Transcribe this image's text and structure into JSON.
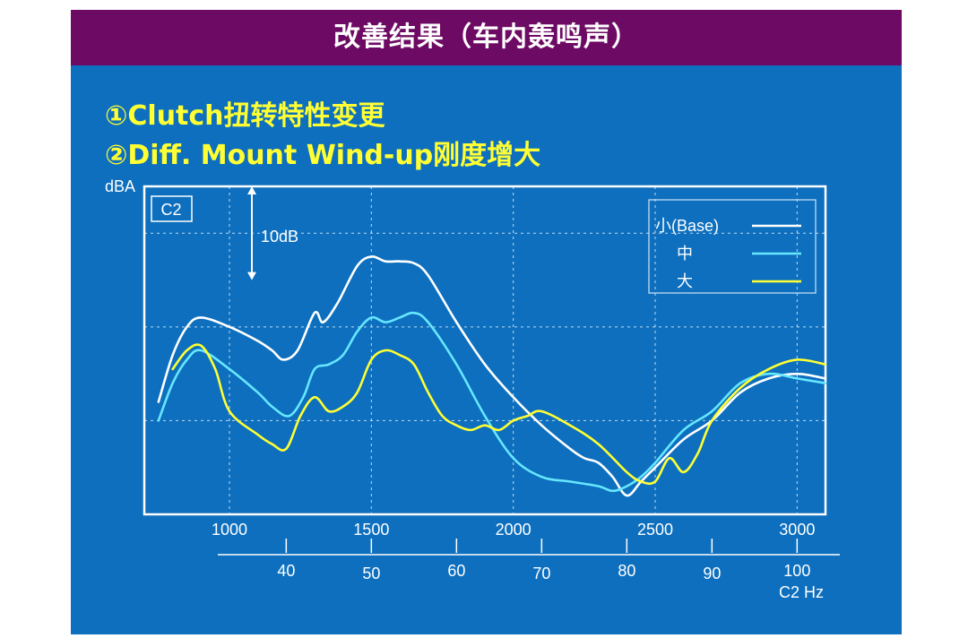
{
  "slide": {
    "title": "改善结果（车内轰鸣声）",
    "bullets": [
      "①Clutch扭转特性变更",
      "②Diff. Mount Wind-up刚度增大"
    ]
  },
  "colors": {
    "header_bg": "#6d0a64",
    "slide_bg": "#0d6fbe",
    "bullet_text": "#ffff33",
    "series_base": "#ffffff",
    "series_mid": "#66e6ff",
    "series_large": "#ffff33"
  },
  "chart_data": {
    "type": "line",
    "panel_label": "C2",
    "ylabel": "dBA",
    "scale_annotation": "10dB",
    "scale_db": 10,
    "ylim": [
      0,
      35
    ],
    "xlim": [
      700,
      3100
    ],
    "x_ticks": [
      1000,
      1500,
      2000,
      2500,
      3000
    ],
    "secondary_axis": {
      "label": "C2 Hz",
      "ticks": [
        "40",
        "50",
        "60",
        "70",
        "80",
        "90",
        "100"
      ],
      "tick_rpm": [
        1200,
        1500,
        1800,
        2100,
        2400,
        2700,
        3000
      ]
    },
    "grid": true,
    "legend_position": "top-right",
    "series": [
      {
        "name": "小(Base)",
        "color": "#ffffff",
        "points": [
          [
            750,
            12
          ],
          [
            800,
            17
          ],
          [
            850,
            20
          ],
          [
            900,
            21
          ],
          [
            1000,
            20
          ],
          [
            1100,
            18.5
          ],
          [
            1150,
            17.5
          ],
          [
            1190,
            16.5
          ],
          [
            1240,
            17.5
          ],
          [
            1300,
            21.5
          ],
          [
            1330,
            20.5
          ],
          [
            1380,
            22.5
          ],
          [
            1450,
            26.5
          ],
          [
            1500,
            27.5
          ],
          [
            1550,
            27
          ],
          [
            1600,
            27
          ],
          [
            1650,
            26.8
          ],
          [
            1700,
            25.5
          ],
          [
            1800,
            20.5
          ],
          [
            1900,
            16
          ],
          [
            2000,
            12.5
          ],
          [
            2100,
            9.5
          ],
          [
            2200,
            7
          ],
          [
            2250,
            6
          ],
          [
            2300,
            5.5
          ],
          [
            2350,
            4
          ],
          [
            2400,
            2
          ],
          [
            2450,
            3.5
          ],
          [
            2500,
            5
          ],
          [
            2600,
            8
          ],
          [
            2700,
            10
          ],
          [
            2800,
            13
          ],
          [
            2900,
            14.5
          ],
          [
            3000,
            15
          ],
          [
            3100,
            14.5
          ]
        ]
      },
      {
        "name": "中",
        "color": "#66e6ff",
        "points": [
          [
            750,
            10
          ],
          [
            800,
            14
          ],
          [
            850,
            16.5
          ],
          [
            900,
            17.5
          ],
          [
            1000,
            15.5
          ],
          [
            1100,
            13
          ],
          [
            1150,
            11.5
          ],
          [
            1210,
            10.5
          ],
          [
            1260,
            12.5
          ],
          [
            1300,
            15.5
          ],
          [
            1350,
            16
          ],
          [
            1400,
            17
          ],
          [
            1450,
            19.5
          ],
          [
            1500,
            21
          ],
          [
            1550,
            20.5
          ],
          [
            1600,
            21
          ],
          [
            1650,
            21.5
          ],
          [
            1700,
            20.5
          ],
          [
            1800,
            16
          ],
          [
            1900,
            10.5
          ],
          [
            2000,
            6
          ],
          [
            2100,
            4
          ],
          [
            2200,
            3.5
          ],
          [
            2300,
            3
          ],
          [
            2350,
            2.5
          ],
          [
            2400,
            3
          ],
          [
            2450,
            4
          ],
          [
            2500,
            5.5
          ],
          [
            2600,
            9
          ],
          [
            2700,
            11
          ],
          [
            2800,
            14
          ],
          [
            2900,
            15
          ],
          [
            3000,
            14.5
          ],
          [
            3100,
            14
          ]
        ]
      },
      {
        "name": "大",
        "color": "#ffff33",
        "points": [
          [
            800,
            15.5
          ],
          [
            850,
            17.5
          ],
          [
            900,
            18
          ],
          [
            950,
            15.5
          ],
          [
            1000,
            11
          ],
          [
            1100,
            8.5
          ],
          [
            1150,
            7.5
          ],
          [
            1200,
            7
          ],
          [
            1250,
            10.5
          ],
          [
            1300,
            12.5
          ],
          [
            1350,
            11
          ],
          [
            1400,
            11.5
          ],
          [
            1450,
            13
          ],
          [
            1500,
            16.5
          ],
          [
            1550,
            17.5
          ],
          [
            1600,
            17
          ],
          [
            1650,
            16
          ],
          [
            1700,
            13
          ],
          [
            1750,
            10.5
          ],
          [
            1800,
            9.5
          ],
          [
            1850,
            9
          ],
          [
            1900,
            9.5
          ],
          [
            1950,
            9
          ],
          [
            2000,
            10
          ],
          [
            2050,
            10.5
          ],
          [
            2100,
            11
          ],
          [
            2200,
            9.5
          ],
          [
            2300,
            7.5
          ],
          [
            2400,
            4.5
          ],
          [
            2450,
            3.5
          ],
          [
            2500,
            3.5
          ],
          [
            2550,
            6
          ],
          [
            2600,
            4.5
          ],
          [
            2650,
            6.5
          ],
          [
            2700,
            10
          ],
          [
            2800,
            13.5
          ],
          [
            2900,
            15.5
          ],
          [
            3000,
            16.5
          ],
          [
            3100,
            16
          ]
        ]
      }
    ]
  }
}
